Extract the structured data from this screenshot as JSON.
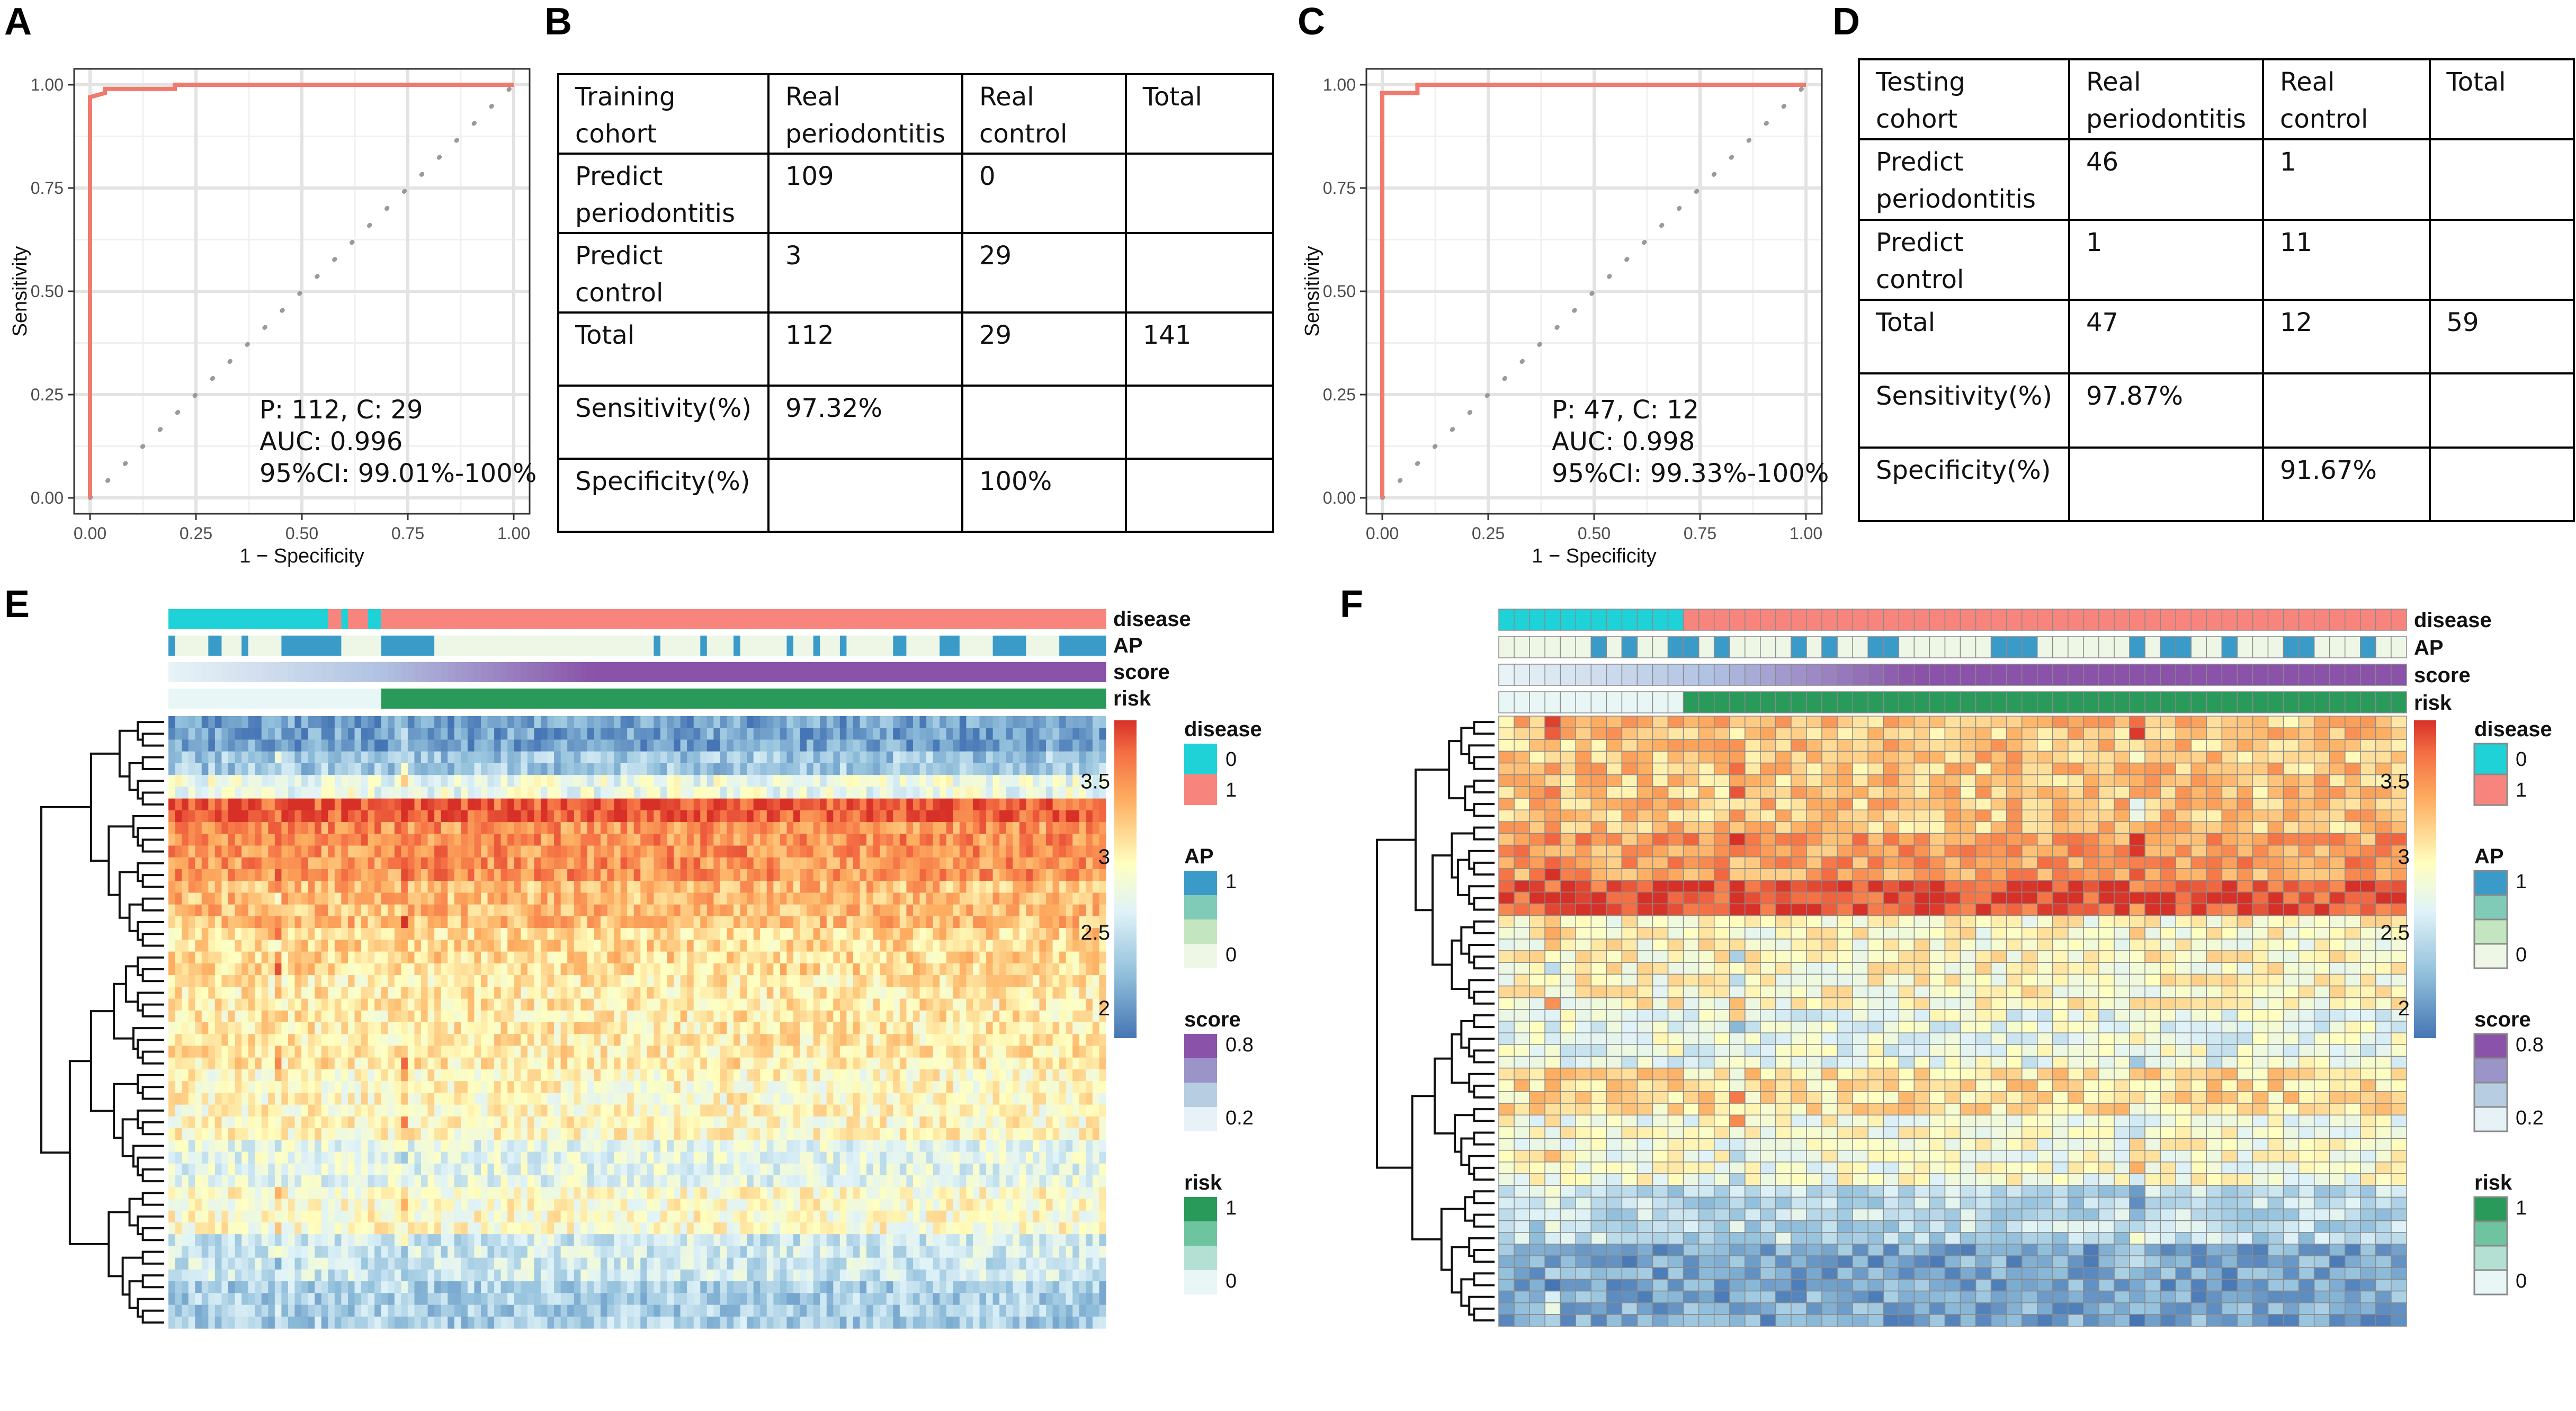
{
  "panels": {
    "A": "A",
    "B": "B",
    "C": "C",
    "D": "D",
    "E": "E",
    "F": "F"
  },
  "chart_data": [
    {
      "id": "A",
      "type": "line",
      "title": "",
      "xlabel": "1 − Specificity",
      "ylabel": "Sensitivity",
      "xlim": [
        0,
        1
      ],
      "ylim": [
        0,
        1
      ],
      "xticks": [
        "0.00",
        "0.25",
        "0.50",
        "0.75",
        "1.00"
      ],
      "yticks": [
        "0.00",
        "0.25",
        "0.50",
        "0.75",
        "1.00"
      ],
      "roc": {
        "x": [
          0,
          0,
          0.035,
          0.035,
          0.2,
          0.2,
          1.0
        ],
        "y": [
          0,
          0.97,
          0.98,
          0.99,
          0.99,
          1.0,
          1.0
        ]
      },
      "color": "#f07a6e",
      "annotations": [
        "P: 112, C: 29",
        "AUC: 0.996",
        "95%CI: 99.01%-100%"
      ]
    },
    {
      "id": "C",
      "type": "line",
      "title": "",
      "xlabel": "1 − Specificity",
      "ylabel": "Sensitivity",
      "xlim": [
        0,
        1
      ],
      "ylim": [
        0,
        1
      ],
      "xticks": [
        "0.00",
        "0.25",
        "0.50",
        "0.75",
        "1.00"
      ],
      "yticks": [
        "0.00",
        "0.25",
        "0.50",
        "0.75",
        "1.00"
      ],
      "roc": {
        "x": [
          0,
          0,
          0.083,
          0.083,
          1.0
        ],
        "y": [
          0,
          0.98,
          0.98,
          1.0,
          1.0
        ]
      },
      "color": "#f07a6e",
      "annotations": [
        "P: 47, C: 12",
        "AUC: 0.998",
        "95%CI: 99.33%-100%"
      ]
    },
    {
      "id": "B",
      "type": "table",
      "rows": [
        [
          "Training cohort",
          "Real periodontitis",
          "Real control",
          "Total"
        ],
        [
          "Predict periodontitis",
          "109",
          "0",
          ""
        ],
        [
          "Predict control",
          "3",
          "29",
          ""
        ],
        [
          "Total",
          "112",
          "29",
          "141"
        ],
        [
          "Sensitivity(%)",
          "97.32%",
          "",
          ""
        ],
        [
          "Specificity(%)",
          "",
          "100%",
          ""
        ]
      ]
    },
    {
      "id": "D",
      "type": "table",
      "rows": [
        [
          "Testing cohort",
          "Real periodontitis",
          "Real control",
          "Total"
        ],
        [
          "Predict periodontitis",
          "46",
          "1",
          ""
        ],
        [
          "Predict control",
          "1",
          "11",
          ""
        ],
        [
          "Total",
          "47",
          "12",
          "59"
        ],
        [
          "Sensitivity(%)",
          "97.87%",
          "",
          ""
        ],
        [
          "Specificity(%)",
          "",
          "91.67%",
          ""
        ]
      ]
    },
    {
      "id": "E",
      "type": "heatmap",
      "annotation_tracks": [
        "disease",
        "AP",
        "score",
        "risk"
      ],
      "n_samples": 141,
      "n_genes": 52,
      "colorbar": {
        "ticks": [
          "3.5",
          "3",
          "2.5",
          "2"
        ],
        "range": [
          1.8,
          3.9
        ]
      },
      "legends": [
        {
          "title": "disease",
          "labels": [
            "0",
            "1"
          ],
          "colors": [
            "#1fd2d8",
            "#f8857d"
          ]
        },
        {
          "title": "AP",
          "labels": [
            "1",
            "0"
          ],
          "colors": [
            "#3b9bc8",
            "#7fcbb8",
            "#c3e6c0",
            "#eef7e6"
          ]
        },
        {
          "title": "score",
          "labels": [
            "0.8",
            "0.2"
          ],
          "colors": [
            "#8a52a8",
            "#9a94c8",
            "#b7cde2",
            "#e6f2f6"
          ]
        },
        {
          "title": "risk",
          "labels": [
            "1",
            "0"
          ],
          "colors": [
            "#2a9a5a",
            "#6fc4a0",
            "#b3e0d2",
            "#e9f6f6"
          ]
        }
      ]
    },
    {
      "id": "F",
      "type": "heatmap",
      "annotation_tracks": [
        "disease",
        "AP",
        "score",
        "risk"
      ],
      "n_samples": 59,
      "n_genes": 52,
      "colorbar": {
        "ticks": [
          "3.5",
          "3",
          "2.5",
          "2"
        ],
        "range": [
          1.8,
          3.9
        ]
      },
      "legends": [
        {
          "title": "disease",
          "labels": [
            "0",
            "1"
          ],
          "colors": [
            "#1fd2d8",
            "#f8857d"
          ]
        },
        {
          "title": "AP",
          "labels": [
            "1",
            "0"
          ],
          "colors": [
            "#3b9bc8",
            "#7fcbb8",
            "#c3e6c0",
            "#eef7e6"
          ]
        },
        {
          "title": "score",
          "labels": [
            "0.8",
            "0.2"
          ],
          "colors": [
            "#8a52a8",
            "#9a94c8",
            "#b7cde2",
            "#e6f2f6"
          ]
        },
        {
          "title": "risk",
          "labels": [
            "1",
            "0"
          ],
          "colors": [
            "#2a9a5a",
            "#6fc4a0",
            "#b3e0d2",
            "#e9f6f6"
          ]
        }
      ]
    }
  ]
}
